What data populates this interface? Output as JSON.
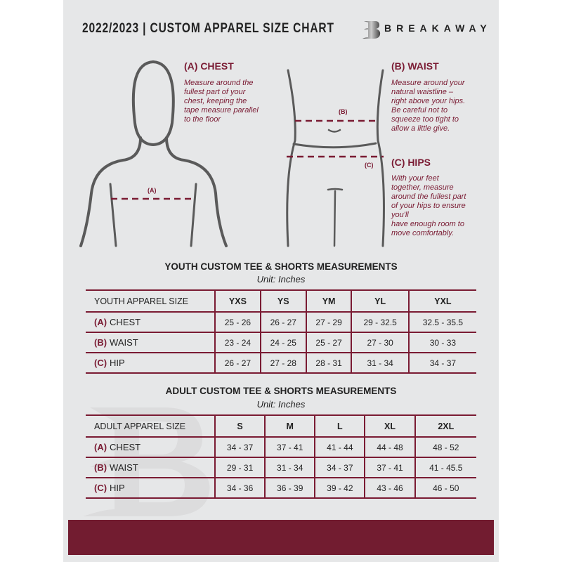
{
  "header": {
    "title": "2022/2023  |  CUSTOM APPAREL SIZE CHART",
    "brand": "BREAKAWAY",
    "logo_letter": "B"
  },
  "guide": {
    "chest": {
      "heading": "(A) CHEST",
      "text": "Measure around the\nfullest part of your\nchest, keeping the\ntape measure parallel\nto the floor",
      "marker": "(A)"
    },
    "waist": {
      "heading": "(B) WAIST",
      "text": "Measure around your\nnatural waistline –\nright above your hips.\nBe careful not to\nsqueeze too tight to\nallow a little give.",
      "marker": "(B)"
    },
    "hips": {
      "heading": "(C) HIPS",
      "text": "With your feet\ntogether, measure\naround the fullest part\nof your hips to ensure\nyou'll\nhave enough room to\nmove comfortably.",
      "marker": "(C)"
    }
  },
  "youth": {
    "title": "YOUTH CUSTOM TEE & SHORTS MEASUREMENTS",
    "unit": "Unit: Inches",
    "header_label": "YOUTH APPAREL SIZE",
    "sizes": [
      "YXS",
      "YS",
      "YM",
      "YL",
      "YXL"
    ],
    "rows": [
      {
        "code": "(A)",
        "name": "CHEST",
        "values": [
          "25 - 26",
          "26 - 27",
          "27 - 29",
          "29 - 32.5",
          "32.5 - 35.5"
        ]
      },
      {
        "code": "(B)",
        "name": "WAIST",
        "values": [
          "23 - 24",
          "24 - 25",
          "25 - 27",
          "27 - 30",
          "30 - 33"
        ]
      },
      {
        "code": "(C)",
        "name": "HIP",
        "values": [
          "26 - 27",
          "27 - 28",
          "28 - 31",
          "31 - 34",
          "34 - 37"
        ]
      }
    ]
  },
  "adult": {
    "title": "ADULT CUSTOM TEE & SHORTS MEASUREMENTS",
    "unit": "Unit: Inches",
    "header_label": "ADULT APPAREL SIZE",
    "sizes": [
      "S",
      "M",
      "L",
      "XL",
      "2XL"
    ],
    "rows": [
      {
        "code": "(A)",
        "name": "CHEST",
        "values": [
          "34 - 37",
          "37 - 41",
          "41 - 44",
          "44 - 48",
          "48 - 52"
        ]
      },
      {
        "code": "(B)",
        "name": "WAIST",
        "values": [
          "29 - 31",
          "31 - 34",
          "34 - 37",
          "37 - 41",
          "41 - 45.5"
        ]
      },
      {
        "code": "(C)",
        "name": "HIP",
        "values": [
          "34 - 36",
          "36 - 39",
          "39 - 42",
          "43 - 46",
          "46 - 50"
        ]
      }
    ]
  },
  "colors": {
    "accent": "#7a1b33",
    "footer": "#721c30",
    "background": "#e6e7e8"
  }
}
